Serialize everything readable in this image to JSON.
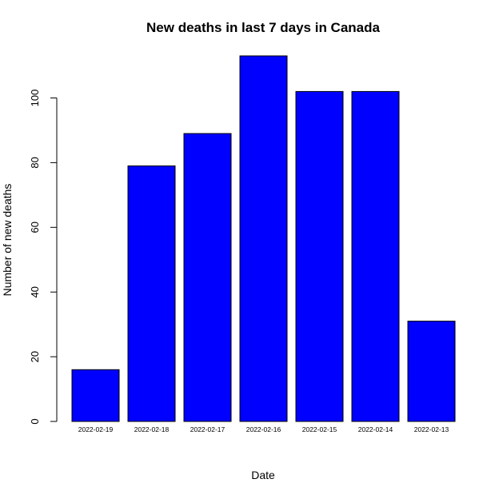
{
  "chart_data": {
    "type": "bar",
    "title": "New deaths in last 7 days in Canada",
    "xlabel": "Date",
    "ylabel": "Number of new deaths",
    "categories": [
      "2022-02-19",
      "2022-02-18",
      "2022-02-17",
      "2022-02-16",
      "2022-02-15",
      "2022-02-14",
      "2022-02-13"
    ],
    "values": [
      16,
      79,
      89,
      113,
      102,
      102,
      31
    ],
    "y_ticks": [
      0,
      20,
      40,
      60,
      80,
      100
    ],
    "ylim": [
      0,
      113
    ],
    "grid": false,
    "legend": "none",
    "bar_color": "#0000ff",
    "bar_border_color": "#000000"
  }
}
